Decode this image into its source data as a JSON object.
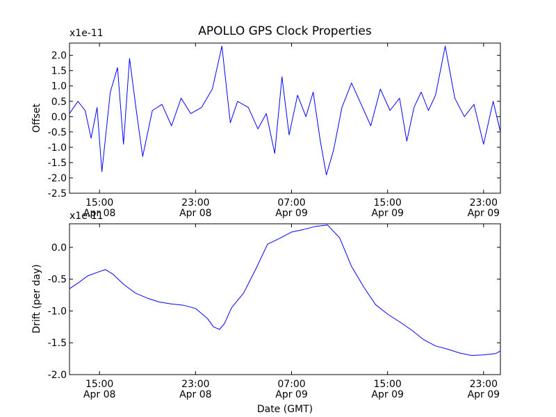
{
  "chart_data": {
    "title": "APOLLO GPS Clock Properties",
    "xlabel": "Date (GMT)",
    "x_tick_labels": [
      {
        "time": "15:00",
        "date": "Apr 08"
      },
      {
        "time": "23:00",
        "date": "Apr 08"
      },
      {
        "time": "07:00",
        "date": "Apr 09"
      },
      {
        "time": "15:00",
        "date": "Apr 09"
      },
      {
        "time": "23:00",
        "date": "Apr 09"
      }
    ],
    "panels": [
      {
        "type": "line",
        "ylabel": "Offset",
        "scale_label": "x1e-11",
        "yticks": [
          "-2.5",
          "-2.0",
          "-1.5",
          "-1.0",
          "-0.5",
          "0.0",
          "0.5",
          "1.0",
          "1.5",
          "2.0"
        ],
        "ylim": [
          -2.5,
          2.4
        ],
        "xlim_hours": [
          12.5,
          48.4
        ],
        "grid": false,
        "color": "#0000ff",
        "series": {
          "x_hours": [
            12.5,
            13.2,
            13.8,
            14.3,
            14.8,
            15.2,
            15.9,
            16.5,
            17.0,
            17.5,
            18.1,
            18.6,
            19.4,
            20.2,
            21.0,
            21.8,
            22.6,
            23.5,
            24.4,
            25.2,
            25.9,
            26.5,
            27.4,
            28.2,
            28.9,
            29.6,
            30.2,
            30.8,
            31.5,
            32.2,
            32.8,
            33.4,
            33.9,
            34.5,
            35.2,
            36.0,
            36.8,
            37.6,
            38.4,
            39.2,
            40.0,
            40.6,
            41.2,
            41.8,
            42.4,
            43.0,
            43.8,
            44.6,
            45.4,
            46.2,
            47.0,
            47.8,
            48.4
          ],
          "offset": [
            0.1,
            0.5,
            0.2,
            -0.7,
            0.3,
            -1.8,
            0.8,
            1.6,
            -0.9,
            1.9,
            0.1,
            -1.3,
            0.2,
            0.4,
            -0.3,
            0.6,
            0.1,
            0.3,
            0.9,
            2.3,
            -0.2,
            0.5,
            0.3,
            -0.4,
            0.1,
            -1.2,
            1.3,
            -0.6,
            0.7,
            0.0,
            0.8,
            -0.8,
            -1.9,
            -1.1,
            0.3,
            1.1,
            0.4,
            -0.3,
            0.9,
            0.2,
            0.6,
            -0.8,
            0.3,
            0.8,
            0.2,
            0.7,
            2.3,
            0.6,
            0.0,
            0.4,
            -0.9,
            0.5,
            -0.5
          ]
        }
      },
      {
        "type": "line",
        "ylabel": "Drift (per day)",
        "scale_label": "x1e-11",
        "yticks": [
          "-2.0",
          "-1.5",
          "-1.0",
          "-0.5",
          "0.0"
        ],
        "ylim": [
          -2.0,
          0.37
        ],
        "xlim_hours": [
          12.5,
          48.4
        ],
        "grid": false,
        "color": "#0000ff",
        "series": {
          "x_hours": [
            12.5,
            13.3,
            14.0,
            15.0,
            15.5,
            16.1,
            17.0,
            18.0,
            19.0,
            20.0,
            21.0,
            22.0,
            23.0,
            24.0,
            24.5,
            25.0,
            25.4,
            26.0,
            27.0,
            28.0,
            29.0,
            30.0,
            31.0,
            32.0,
            33.0,
            34.0,
            35.0,
            36.0,
            37.0,
            38.0,
            39.0,
            40.0,
            41.0,
            42.0,
            43.0,
            44.0,
            45.0,
            46.0,
            47.0,
            48.0,
            48.4
          ],
          "drift": [
            -0.65,
            -0.55,
            -0.45,
            -0.38,
            -0.35,
            -0.42,
            -0.58,
            -0.72,
            -0.8,
            -0.86,
            -0.89,
            -0.91,
            -0.96,
            -1.12,
            -1.25,
            -1.29,
            -1.2,
            -0.95,
            -0.72,
            -0.35,
            0.05,
            0.14,
            0.24,
            0.28,
            0.33,
            0.35,
            0.15,
            -0.3,
            -0.62,
            -0.9,
            -1.05,
            -1.17,
            -1.3,
            -1.45,
            -1.55,
            -1.6,
            -1.66,
            -1.7,
            -1.69,
            -1.67,
            -1.63
          ]
        }
      }
    ]
  }
}
